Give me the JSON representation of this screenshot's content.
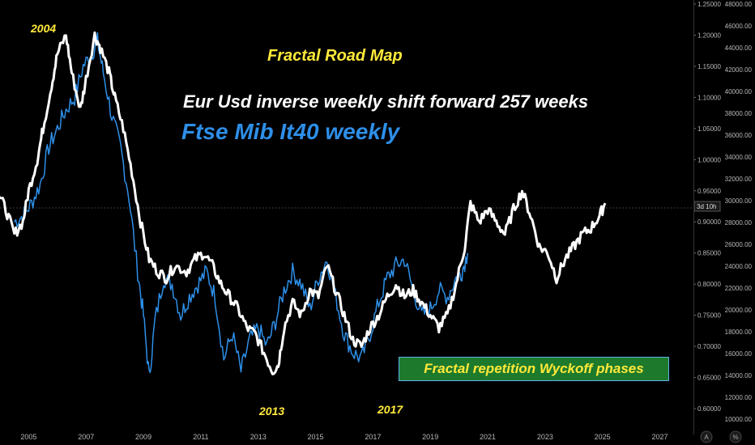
{
  "annotations": {
    "title": "Fractal Road Map",
    "subtitle_white": "Eur Usd inverse weekly shift forward 257 weeks",
    "subtitle_blue": "Ftse Mib It40 weekly",
    "label_2004": "2004",
    "label_2013": "2013",
    "label_2017": "2017",
    "box_label": "Fractal repetition Wyckoff phases",
    "countdown": "3d 10h",
    "axis_buttons": [
      "A",
      "%"
    ]
  },
  "colors": {
    "background": "#000000",
    "eurusd_line": "#ffffff",
    "ftse_line": "#2e8fe8",
    "annotation_yellow": "#ffe93a",
    "box_fill": "#1d7a2c"
  },
  "chart_data": {
    "type": "line",
    "x_range": [
      2004.0,
      2028.2
    ],
    "x_ticks": [
      "2005",
      "2007",
      "2009",
      "2011",
      "2013",
      "2015",
      "2017",
      "2019",
      "2021",
      "2023",
      "2025",
      "2027"
    ],
    "y_left_label_range": [
      0.6,
      1.25
    ],
    "y_ticks_eurusd": [
      "1.25000",
      "1.20000",
      "1.15000",
      "1.10000",
      "1.05000",
      "1.00000",
      "0.95000",
      "0.90000",
      "0.85000",
      "0.80000",
      "0.75000",
      "0.70000",
      "0.65000",
      "0.60000"
    ],
    "y_ticks_ftse": [
      "48000.00",
      "46000.00",
      "44000.00",
      "42000.00",
      "40000.00",
      "38000.00",
      "36000.00",
      "34000.00",
      "32000.00",
      "30000.00",
      "28000.00",
      "26000.00",
      "24000.00",
      "22000.00",
      "20000.00",
      "18000.00",
      "16000.00",
      "14000.00",
      "12000.00",
      "10000.00"
    ],
    "current_level": 0.925,
    "series": [
      {
        "name": "Eur Usd inverse weekly shift forward 257 weeks",
        "points": [
          [
            2003.9,
            0.95
          ],
          [
            2004.2,
            0.92
          ],
          [
            2004.5,
            0.88
          ],
          [
            2004.8,
            0.9
          ],
          [
            2005.0,
            0.95
          ],
          [
            2005.3,
            1.0
          ],
          [
            2005.5,
            1.05
          ],
          [
            2005.8,
            1.12
          ],
          [
            2006.0,
            1.17
          ],
          [
            2006.3,
            1.2
          ],
          [
            2006.5,
            1.14
          ],
          [
            2006.8,
            1.08
          ],
          [
            2007.0,
            1.13
          ],
          [
            2007.3,
            1.2
          ],
          [
            2007.5,
            1.18
          ],
          [
            2007.8,
            1.14
          ],
          [
            2008.0,
            1.1
          ],
          [
            2008.3,
            1.05
          ],
          [
            2008.6,
            0.98
          ],
          [
            2008.9,
            0.9
          ],
          [
            2009.2,
            0.84
          ],
          [
            2009.5,
            0.82
          ],
          [
            2009.8,
            0.81
          ],
          [
            2010.1,
            0.83
          ],
          [
            2010.5,
            0.82
          ],
          [
            2010.8,
            0.84
          ],
          [
            2011.1,
            0.85
          ],
          [
            2011.4,
            0.83
          ],
          [
            2011.7,
            0.8
          ],
          [
            2012.0,
            0.78
          ],
          [
            2012.3,
            0.76
          ],
          [
            2012.6,
            0.73
          ],
          [
            2012.9,
            0.72
          ],
          [
            2013.2,
            0.69
          ],
          [
            2013.5,
            0.66
          ],
          [
            2013.7,
            0.67
          ],
          [
            2013.9,
            0.73
          ],
          [
            2014.2,
            0.77
          ],
          [
            2014.5,
            0.75
          ],
          [
            2014.8,
            0.79
          ],
          [
            2015.1,
            0.78
          ],
          [
            2015.4,
            0.83
          ],
          [
            2015.7,
            0.79
          ],
          [
            2016.0,
            0.75
          ],
          [
            2016.3,
            0.71
          ],
          [
            2016.6,
            0.7
          ],
          [
            2016.9,
            0.73
          ],
          [
            2017.2,
            0.75
          ],
          [
            2017.5,
            0.78
          ],
          [
            2017.8,
            0.8
          ],
          [
            2018.1,
            0.78
          ],
          [
            2018.4,
            0.79
          ],
          [
            2018.7,
            0.77
          ],
          [
            2019.0,
            0.75
          ],
          [
            2019.3,
            0.73
          ],
          [
            2019.6,
            0.75
          ],
          [
            2019.9,
            0.8
          ],
          [
            2020.2,
            0.86
          ],
          [
            2020.4,
            0.93
          ],
          [
            2020.7,
            0.9
          ],
          [
            2021.0,
            0.92
          ],
          [
            2021.3,
            0.9
          ],
          [
            2021.6,
            0.88
          ],
          [
            2021.9,
            0.92
          ],
          [
            2022.2,
            0.95
          ],
          [
            2022.5,
            0.91
          ],
          [
            2022.8,
            0.86
          ],
          [
            2023.1,
            0.85
          ],
          [
            2023.4,
            0.81
          ],
          [
            2023.7,
            0.84
          ],
          [
            2024.0,
            0.86
          ],
          [
            2024.3,
            0.88
          ],
          [
            2024.6,
            0.89
          ],
          [
            2024.9,
            0.91
          ],
          [
            2025.1,
            0.93
          ]
        ]
      },
      {
        "name": "Ftse Mib It40 weekly",
        "points": [
          [
            2004.5,
            0.9
          ],
          [
            2004.8,
            0.91
          ],
          [
            2005.1,
            0.93
          ],
          [
            2005.4,
            0.96
          ],
          [
            2005.7,
            1.02
          ],
          [
            2006.0,
            1.05
          ],
          [
            2006.3,
            1.08
          ],
          [
            2006.6,
            1.1
          ],
          [
            2006.9,
            1.15
          ],
          [
            2007.2,
            1.17
          ],
          [
            2007.4,
            1.19
          ],
          [
            2007.6,
            1.14
          ],
          [
            2007.9,
            1.07
          ],
          [
            2008.2,
            1.02
          ],
          [
            2008.5,
            0.94
          ],
          [
            2008.8,
            0.82
          ],
          [
            2009.0,
            0.75
          ],
          [
            2009.2,
            0.65
          ],
          [
            2009.4,
            0.74
          ],
          [
            2009.7,
            0.81
          ],
          [
            2010.0,
            0.8
          ],
          [
            2010.3,
            0.75
          ],
          [
            2010.6,
            0.78
          ],
          [
            2010.9,
            0.8
          ],
          [
            2011.2,
            0.82
          ],
          [
            2011.5,
            0.78
          ],
          [
            2011.8,
            0.68
          ],
          [
            2012.1,
            0.72
          ],
          [
            2012.4,
            0.66
          ],
          [
            2012.7,
            0.71
          ],
          [
            2013.0,
            0.73
          ],
          [
            2013.3,
            0.7
          ],
          [
            2013.6,
            0.74
          ],
          [
            2013.9,
            0.79
          ],
          [
            2014.2,
            0.82
          ],
          [
            2014.5,
            0.8
          ],
          [
            2014.8,
            0.76
          ],
          [
            2015.1,
            0.81
          ],
          [
            2015.4,
            0.84
          ],
          [
            2015.7,
            0.78
          ],
          [
            2016.0,
            0.72
          ],
          [
            2016.3,
            0.69
          ],
          [
            2016.6,
            0.68
          ],
          [
            2016.9,
            0.72
          ],
          [
            2017.2,
            0.77
          ],
          [
            2017.5,
            0.81
          ],
          [
            2017.8,
            0.83
          ],
          [
            2018.1,
            0.84
          ],
          [
            2018.4,
            0.79
          ],
          [
            2018.7,
            0.75
          ],
          [
            2019.0,
            0.76
          ],
          [
            2019.3,
            0.79
          ],
          [
            2019.6,
            0.78
          ],
          [
            2019.9,
            0.81
          ],
          [
            2020.1,
            0.82
          ],
          [
            2020.3,
            0.85
          ]
        ]
      }
    ]
  }
}
